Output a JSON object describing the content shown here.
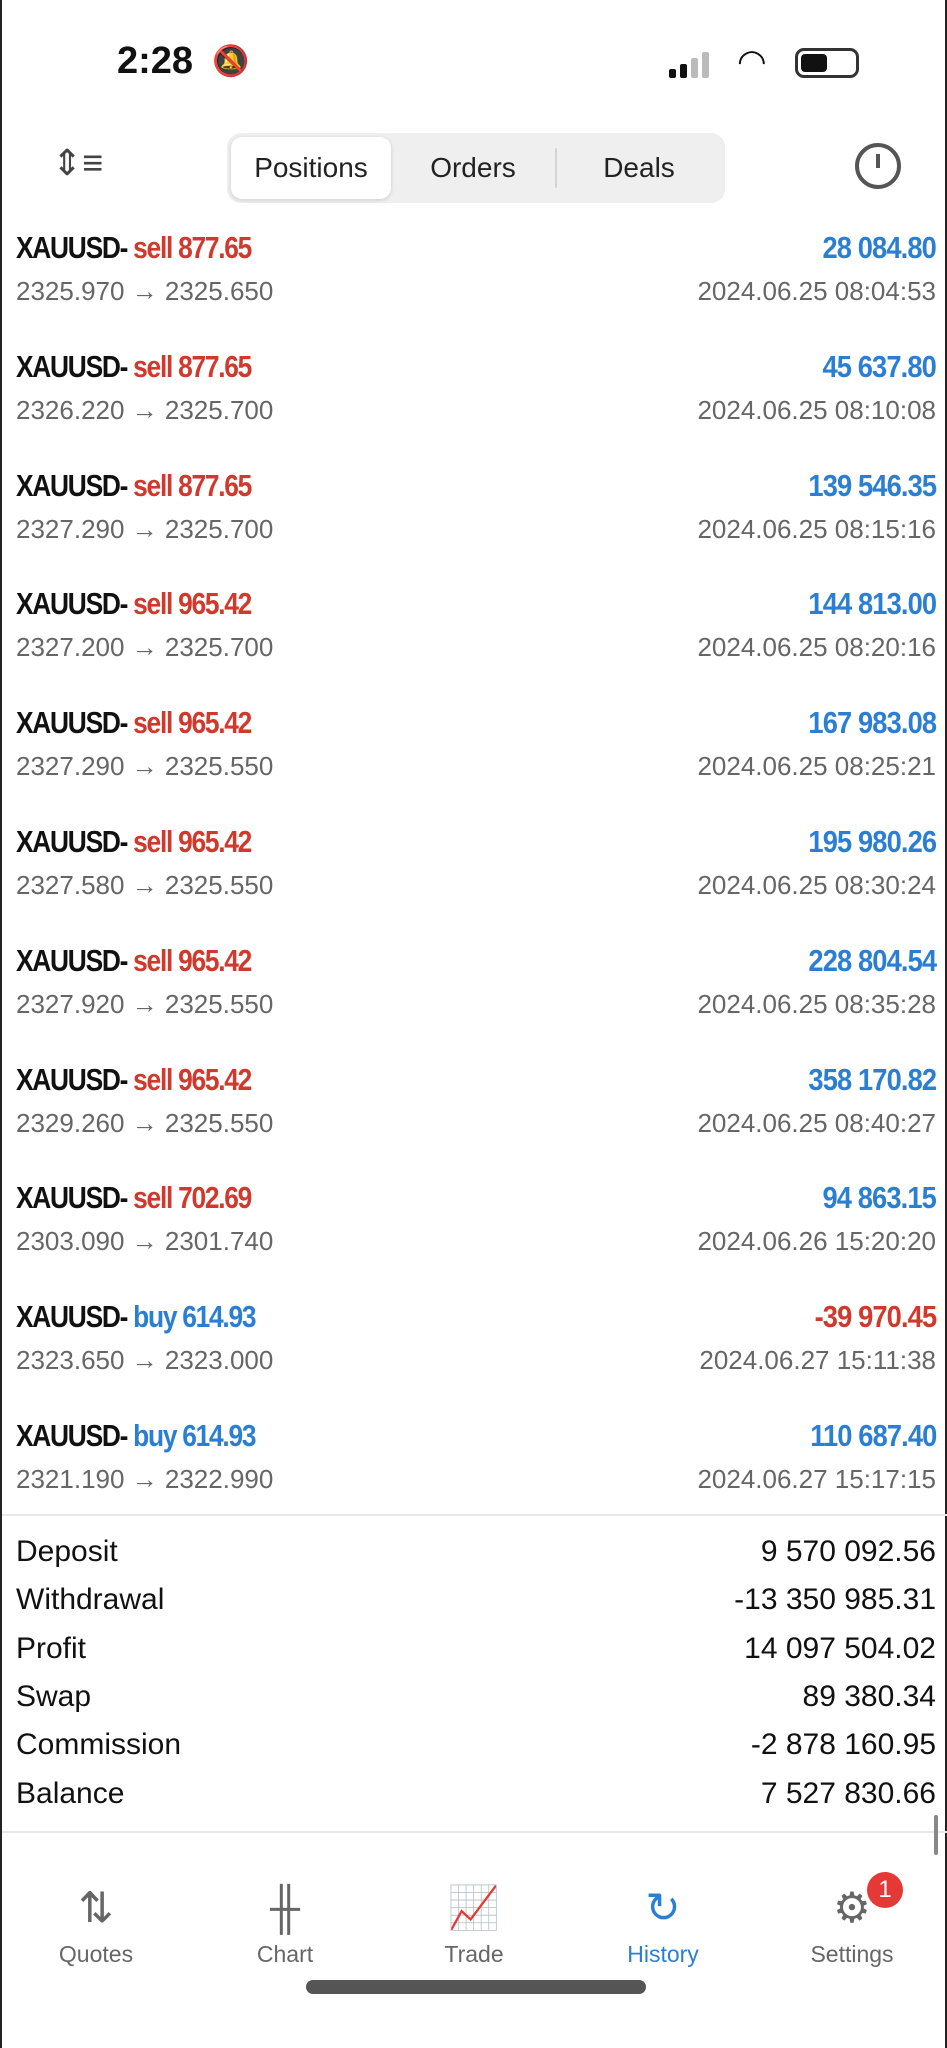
{
  "status": {
    "time": "2:28"
  },
  "tabs": [
    "Positions",
    "Orders",
    "Deals"
  ],
  "active_tab": 0,
  "deals": [
    {
      "symbol": "XAUUSD-",
      "side": "sell",
      "volume": "877.65",
      "prices": "2325.970 → 2325.650",
      "profit": "28 084.80",
      "time": "2024.06.25 08:04:53"
    },
    {
      "symbol": "XAUUSD-",
      "side": "sell",
      "volume": "877.65",
      "prices": "2326.220 → 2325.700",
      "profit": "45 637.80",
      "time": "2024.06.25 08:10:08"
    },
    {
      "symbol": "XAUUSD-",
      "side": "sell",
      "volume": "877.65",
      "prices": "2327.290 → 2325.700",
      "profit": "139 546.35",
      "time": "2024.06.25 08:15:16"
    },
    {
      "symbol": "XAUUSD-",
      "side": "sell",
      "volume": "965.42",
      "prices": "2327.200 → 2325.700",
      "profit": "144 813.00",
      "time": "2024.06.25 08:20:16"
    },
    {
      "symbol": "XAUUSD-",
      "side": "sell",
      "volume": "965.42",
      "prices": "2327.290 → 2325.550",
      "profit": "167 983.08",
      "time": "2024.06.25 08:25:21"
    },
    {
      "symbol": "XAUUSD-",
      "side": "sell",
      "volume": "965.42",
      "prices": "2327.580 → 2325.550",
      "profit": "195 980.26",
      "time": "2024.06.25 08:30:24"
    },
    {
      "symbol": "XAUUSD-",
      "side": "sell",
      "volume": "965.42",
      "prices": "2327.920 → 2325.550",
      "profit": "228 804.54",
      "time": "2024.06.25 08:35:28"
    },
    {
      "symbol": "XAUUSD-",
      "side": "sell",
      "volume": "965.42",
      "prices": "2329.260 → 2325.550",
      "profit": "358 170.82",
      "time": "2024.06.25 08:40:27"
    },
    {
      "symbol": "XAUUSD-",
      "side": "sell",
      "volume": "702.69",
      "prices": "2303.090 → 2301.740",
      "profit": "94 863.15",
      "time": "2024.06.26 15:20:20"
    },
    {
      "symbol": "XAUUSD-",
      "side": "buy",
      "volume": "614.93",
      "prices": "2323.650 → 2323.000",
      "profit": "-39 970.45",
      "time": "2024.06.27 15:11:38"
    },
    {
      "symbol": "XAUUSD-",
      "side": "buy",
      "volume": "614.93",
      "prices": "2321.190 → 2322.990",
      "profit": "110 687.40",
      "time": "2024.06.27 15:17:15"
    }
  ],
  "summary": [
    {
      "label": "Deposit",
      "value": "9 570 092.56"
    },
    {
      "label": "Withdrawal",
      "value": "-13 350 985.31"
    },
    {
      "label": "Profit",
      "value": "14 097 504.02"
    },
    {
      "label": "Swap",
      "value": "89 380.34"
    },
    {
      "label": "Commission",
      "value": "-2 878 160.95"
    },
    {
      "label": "Balance",
      "value": "7 527 830.66"
    }
  ],
  "nav": [
    {
      "label": "Quotes",
      "icon": "quotes-arrows-icon"
    },
    {
      "label": "Chart",
      "icon": "candlestick-icon"
    },
    {
      "label": "Trade",
      "icon": "trade-chart-icon"
    },
    {
      "label": "History",
      "icon": "history-clock-icon"
    },
    {
      "label": "Settings",
      "icon": "gear-icon",
      "badge": "1"
    }
  ],
  "active_nav": 3,
  "colors": {
    "sell": "#d0392b",
    "buy": "#2a7fd4",
    "profit_positive": "#2a7fd4",
    "profit_negative": "#d0392b",
    "accent": "#2a7fd4"
  }
}
